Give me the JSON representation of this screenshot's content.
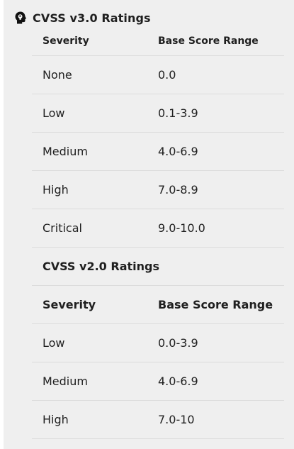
{
  "v3": {
    "title": "CVSS v3.0 Ratings",
    "headers": {
      "severity": "Severity",
      "range": "Base Score Range"
    },
    "rows": [
      {
        "severity": "None",
        "range": "0.0"
      },
      {
        "severity": "Low",
        "range": "0.1-3.9"
      },
      {
        "severity": "Medium",
        "range": "4.0-6.9"
      },
      {
        "severity": "High",
        "range": "7.0-8.9"
      },
      {
        "severity": "Critical",
        "range": "9.0-10.0"
      }
    ]
  },
  "v2": {
    "title": "CVSS v2.0 Ratings",
    "headers": {
      "severity": "Severity",
      "range": "Base Score Range"
    },
    "rows": [
      {
        "severity": "Low",
        "range": "0.0-3.9"
      },
      {
        "severity": "Medium",
        "range": "4.0-6.9"
      },
      {
        "severity": "High",
        "range": "7.0-10"
      }
    ]
  },
  "icons": {
    "header": "lightbulb-head-icon"
  }
}
